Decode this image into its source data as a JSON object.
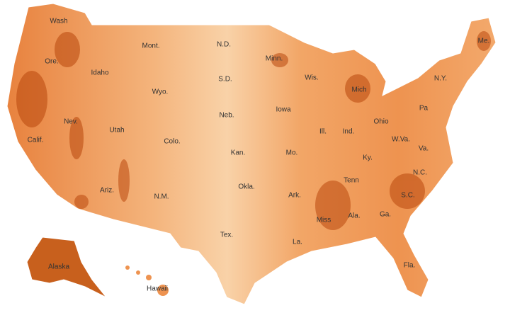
{
  "labels": [
    "Wash",
    "Mont.",
    "N.D.",
    "Minn.",
    "Me.",
    "Ore.",
    "Idaho",
    "S.D.",
    "Wis.",
    "Mich",
    "N.Y.",
    "Wyo.",
    "Neb.",
    "Iowa",
    "Pa",
    "Nev.",
    "Utah",
    "Ill.",
    "Ind.",
    "Ohio",
    "W.Va.",
    "Va.",
    "Calif.",
    "Colo.",
    "Kan.",
    "Mo.",
    "Ky.",
    "N.C.",
    "Tenn",
    "Okla.",
    "Ark.",
    "S.C.",
    "Ariz.",
    "N.M.",
    "Ala.",
    "Ga.",
    "Miss",
    "Tex.",
    "La.",
    "Fla.",
    "Alaska",
    "Hawaii"
  ]
}
